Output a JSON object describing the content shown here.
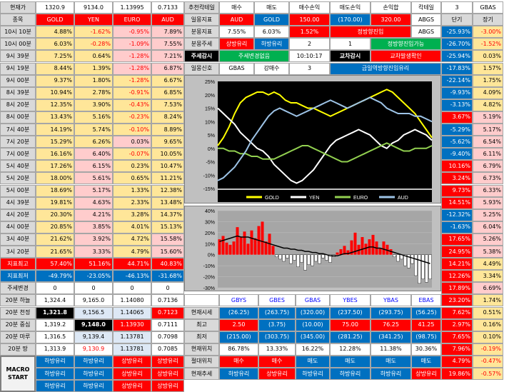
{
  "header": {
    "label": "현재가",
    "name_label": "종목",
    "prices": [
      "1320.9",
      "9134.0",
      "1.13995",
      "0.7133"
    ],
    "symbols": [
      "GOLD",
      "YEN",
      "EURO",
      "AUD"
    ]
  },
  "rows": [
    {
      "label": "10시 10분",
      "v": [
        "4.88%",
        "-1.62%",
        "-0.95%",
        "7.89%"
      ],
      "bg": [
        "gold",
        "gold",
        "pink",
        "pink"
      ]
    },
    {
      "label": "10시 00분",
      "v": [
        "6.03%",
        "-0.28%",
        "-1.09%",
        "7.55%"
      ],
      "bg": [
        "gold",
        "gold",
        "pink",
        "pink"
      ]
    },
    {
      "label": "9시 39분",
      "v": [
        "7.25%",
        "0.64%",
        "-1.28%",
        "7.21%"
      ],
      "bg": [
        "gold",
        "gold",
        "pink",
        "pink"
      ]
    },
    {
      "label": "9시 19분",
      "v": [
        "8.44%",
        "1.39%",
        "-1.28%",
        "6.87%"
      ],
      "bg": [
        "gold",
        "gold",
        "pink",
        "pink"
      ]
    },
    {
      "label": "9시 00분",
      "v": [
        "9.37%",
        "1.80%",
        "-1.28%",
        "6.67%"
      ],
      "bg": [
        "gold",
        "gold",
        "gold",
        "gold"
      ]
    },
    {
      "label": "8시 39분",
      "v": [
        "10.94%",
        "2.78%",
        "-0.91%",
        "6.85%"
      ],
      "bg": [
        "gold",
        "gold",
        "gold",
        "gold"
      ]
    },
    {
      "label": "8시 20분",
      "v": [
        "12.35%",
        "3.90%",
        "-0.43%",
        "7.53%"
      ],
      "bg": [
        "gold",
        "gold",
        "gold",
        "gold"
      ]
    },
    {
      "label": "8시 00분",
      "v": [
        "13.43%",
        "5.16%",
        "-0.23%",
        "8.24%"
      ],
      "bg": [
        "gold",
        "gold",
        "gold",
        "gold"
      ]
    },
    {
      "label": "7시 40분",
      "v": [
        "14.19%",
        "5.74%",
        "-0.10%",
        "8.89%"
      ],
      "bg": [
        "gold",
        "gold",
        "gold",
        "gold"
      ]
    },
    {
      "label": "7시 20분",
      "v": [
        "15.29%",
        "6.26%",
        "0.03%",
        "9.65%"
      ],
      "bg": [
        "gold",
        "gold",
        "pink",
        "gold"
      ]
    },
    {
      "label": "7시 00분",
      "v": [
        "16.16%",
        "6.40%",
        "-0.07%",
        "10.05%"
      ],
      "bg": [
        "gold",
        "pink",
        "gold",
        "gold"
      ]
    },
    {
      "label": "5시 40분",
      "v": [
        "17.26%",
        "6.15%",
        "0.23%",
        "10.47%"
      ],
      "bg": [
        "gold",
        "pink",
        "gold",
        "gold"
      ]
    },
    {
      "label": "5시 20분",
      "v": [
        "18.00%",
        "5.61%",
        "0.65%",
        "11.21%"
      ],
      "bg": [
        "gold",
        "pink",
        "gold",
        "gold"
      ]
    },
    {
      "label": "5시 00분",
      "v": [
        "18.69%",
        "5.17%",
        "1.33%",
        "12.38%"
      ],
      "bg": [
        "gold",
        "pink",
        "gold",
        "gold"
      ]
    },
    {
      "label": "4시 39분",
      "v": [
        "19.81%",
        "4.63%",
        "2.33%",
        "13.48%"
      ],
      "bg": [
        "gold",
        "pink",
        "gold",
        "gold"
      ]
    },
    {
      "label": "4시 20분",
      "v": [
        "20.30%",
        "4.21%",
        "3.28%",
        "14.37%"
      ],
      "bg": [
        "gold",
        "pink",
        "gold",
        "gold"
      ]
    },
    {
      "label": "4시 00분",
      "v": [
        "20.85%",
        "3.85%",
        "4.01%",
        "15.13%"
      ],
      "bg": [
        "gold",
        "pink",
        "gold",
        "gold"
      ]
    },
    {
      "label": "3시 40분",
      "v": [
        "21.62%",
        "3.92%",
        "4.72%",
        "15.58%"
      ],
      "bg": [
        "gold",
        "pink",
        "gold",
        "pink"
      ]
    },
    {
      "label": "3시 20분",
      "v": [
        "21.65%",
        "3.33%",
        "4.79%",
        "15.60%"
      ],
      "bg": [
        "gold",
        "pink",
        "gold",
        "pink"
      ]
    }
  ],
  "max_row": {
    "label": "지표최고",
    "v": [
      "57.40%",
      "51.16%",
      "44.71%",
      "40.83%"
    ]
  },
  "min_row": {
    "label": "지표최저",
    "v": [
      "-49.79%",
      "-23.05%",
      "-46.13%",
      "-31.68%"
    ]
  },
  "trend_change": {
    "label": "주세변경",
    "v": [
      "0",
      "0",
      "0",
      "0"
    ]
  },
  "bands": [
    {
      "label": "20분 하늘",
      "v": [
        "1,324.4",
        "9,165.0",
        "1.14080",
        "0.7136"
      ],
      "style": "wht"
    },
    {
      "label": "20분 천정",
      "v": [
        "1,321.8",
        "9,156.5",
        "1.14065",
        "0.7123"
      ],
      "style": "tops"
    },
    {
      "label": "20분 중심",
      "v": [
        "1,319.2",
        "9,148.0",
        "1.13930",
        "0.7111"
      ],
      "style": "mids"
    },
    {
      "label": "20분 마루",
      "v": [
        "1,316.5",
        "9,139.4",
        "1.13781",
        "0.7098"
      ],
      "style": "lows"
    },
    {
      "label": "20분 땅",
      "v": [
        "1,313.9",
        "9,130.9",
        "1.13781",
        "0.7085"
      ],
      "style": "gnds"
    }
  ],
  "macro": {
    "label": "MACRO\nSTART",
    "l1": "MACRO",
    "l2": "START"
  },
  "bottom_left": [
    [
      "하방유리",
      "하방유리",
      "상방유리",
      "상방유리"
    ],
    [
      "하방유리",
      "하방유리",
      "상방유리",
      "상방유리"
    ],
    [
      "하방유리",
      "하방유리",
      "상방유리",
      "상방유리"
    ]
  ],
  "top_panel": {
    "r1": {
      "a": "추천칵테일",
      "b": "매수",
      "c": "매도",
      "d": "매수손익",
      "e": "매도손익",
      "f": "손익합",
      "g": "칵테일",
      "h": "3",
      "i": "GBAS"
    },
    "r2": {
      "a": "일몽지표",
      "b": "AUD",
      "c": "GOLD",
      "d": "150.00",
      "e": "(170.00)",
      "f": "320.00",
      "g": "ABGS",
      "h": "단기",
      "i": "장기"
    },
    "r3": {
      "a": "분몽지표",
      "b": "7.55%",
      "c": "6.03%",
      "d": "1.52%",
      "e": "정방향진입",
      "g": "ABGS",
      "h": "-25.93%",
      "i": "-3.00%"
    },
    "r4": {
      "a": "분몽주세",
      "b": "상방유리",
      "c": "하방유리",
      "d": "2",
      "e": "1",
      "f": "정방향진입가능",
      "h": "-26.70%",
      "i": "-1.52%"
    },
    "r5": {
      "a": "주세감시",
      "b": "주세변경없음",
      "d": "10:10:17",
      "e": "교차감시",
      "f": "교차발생확인",
      "h": "-25.94%",
      "i": "0.03%"
    },
    "r6": {
      "a": "일몽신호",
      "b": "GBAS",
      "c": "강매수",
      "d": "3",
      "e": "금일역방향진입유리",
      "h": "-17.83%",
      "i": "1.57%"
    }
  },
  "right_short": [
    "-22.14%",
    "-9.93%",
    "-3.13%",
    "3.67%",
    "-5.29%",
    "-5.62%",
    "-9.40%",
    "10.16%",
    "3.24%",
    "9.73%",
    "14.51%",
    "-12.32%",
    "-1.63%",
    "17.65%",
    "24.95%",
    "14.21%",
    "12.26%",
    "17.89%",
    "23.20%",
    "7.62%",
    "2.97%",
    "7.65%",
    "7.96%",
    "4.79%",
    "19.86%"
  ],
  "right_long": [
    "1.75%",
    "4.09%",
    "4.82%",
    "5.19%",
    "5.17%",
    "6.54%",
    "6.11%",
    "6.79%",
    "6.73%",
    "6.33%",
    "5.93%",
    "5.25%",
    "6.04%",
    "5.26%",
    "5.38%",
    "4.49%",
    "3.34%",
    "6.69%",
    "1.74%",
    "0.51%",
    "0.16%",
    "0.10%",
    "-0.19%",
    "-0.47%",
    "-0.57%"
  ],
  "summary": {
    "headers": [
      "GBYS",
      "GBES",
      "GBAS",
      "YBES",
      "YBAS",
      "EBAS"
    ],
    "rows": [
      {
        "label": "현재시세",
        "v": [
          "(26.25)",
          "(263.75)",
          "(320.00)",
          "(237.50)",
          "(293.75)",
          "(56.25)"
        ]
      },
      {
        "label": "최고",
        "v": [
          "2.50",
          "(3.75)",
          "(10.00)",
          "75.00",
          "76.25",
          "41.25"
        ]
      },
      {
        "label": "최저",
        "v": [
          "(215.00)",
          "(303.75)",
          "(345.00)",
          "(281.25)",
          "(341.25)",
          "(98.75)"
        ]
      },
      {
        "label": "현재위치",
        "v": [
          "86.78%",
          "13.33%",
          "16.22%",
          "12.28%",
          "11.38%",
          "30.36%"
        ]
      },
      {
        "label": "절대위치",
        "v": [
          "매수",
          "매수",
          "매도",
          "매도",
          "매도",
          "매도"
        ]
      },
      {
        "label": "현재추세",
        "v": [
          "하방유리",
          "상방유리",
          "하방유리",
          "하방유리",
          "하방유리",
          "상방유리"
        ]
      }
    ]
  },
  "chart_data": [
    {
      "type": "line",
      "title": "",
      "ylim": [
        -15,
        25
      ],
      "yticks": [
        "25%",
        "20%",
        "15%",
        "10%",
        "5%",
        "0%",
        "-5%",
        "-10%",
        "-15%"
      ],
      "series": [
        {
          "name": "GOLD",
          "color": "#ffff00",
          "values": [
            1,
            4,
            8,
            13,
            17,
            19,
            20,
            21,
            21,
            20,
            21,
            20,
            18,
            17,
            17,
            16,
            15,
            15,
            14,
            13,
            12,
            13,
            14,
            15,
            16,
            17,
            18,
            19,
            20,
            21,
            22,
            21,
            19,
            17,
            15,
            13,
            10,
            7,
            4
          ]
        },
        {
          "name": "YEN",
          "color": "#ffffff",
          "values": [
            15,
            13,
            11,
            9,
            6,
            4,
            2,
            0,
            -1,
            -3,
            -6,
            -8,
            -10,
            -12,
            -13,
            -12,
            -10,
            -8,
            -5,
            -2,
            1,
            3,
            4,
            5,
            6,
            7,
            6,
            5,
            3,
            1,
            0,
            2,
            3,
            5,
            6,
            7,
            6,
            5,
            3
          ]
        },
        {
          "name": "EURO",
          "color": "#92d050",
          "values": [
            0,
            0,
            -1,
            -1,
            -2,
            -2,
            -3,
            -3,
            -4,
            -4,
            -4,
            -3,
            -2,
            -1,
            0,
            1,
            1,
            0,
            -1,
            -2,
            -3,
            -4,
            -5,
            -5,
            -4,
            -3,
            -2,
            -1,
            0,
            1,
            2,
            1,
            0,
            -1,
            -1,
            0,
            0,
            0,
            1
          ]
        },
        {
          "name": "AUD",
          "color": "#9dc3e6",
          "values": [
            -12,
            -11,
            -9,
            -7,
            -4,
            -1,
            3,
            6,
            9,
            12,
            14,
            15,
            14,
            13,
            12,
            13,
            14,
            15,
            16,
            17,
            18,
            17,
            16,
            15,
            16,
            17,
            18,
            19,
            18,
            17,
            15,
            14,
            13,
            13,
            13,
            12,
            12,
            11,
            10
          ]
        }
      ]
    },
    {
      "type": "bar",
      "title": "",
      "ylim": [
        -30,
        40
      ],
      "yticks": [
        "40%",
        "30%",
        "20%",
        "10%",
        "0%",
        "-10%",
        "-20%",
        "-30%"
      ],
      "values": [
        14,
        17,
        11,
        9,
        12,
        25,
        16,
        21,
        10,
        22,
        15,
        26,
        30,
        12,
        19,
        8,
        -2,
        -4,
        -6,
        -3,
        -8,
        -5,
        -11,
        -7,
        -14,
        -9,
        -10,
        -6,
        -8,
        -3,
        -5,
        -7,
        -2,
        2,
        5,
        8,
        4,
        13,
        20,
        9,
        16,
        10,
        14,
        18,
        12,
        6,
        12,
        9,
        5,
        -2,
        -6,
        -4,
        -10,
        -12,
        -8,
        -19,
        -26,
        -22,
        -25,
        -22
      ],
      "line": [
        12,
        13,
        14,
        15,
        16,
        17,
        16,
        16,
        16,
        15,
        14,
        13,
        12,
        11,
        10,
        9,
        8,
        7,
        6,
        6,
        5,
        5,
        4,
        4,
        3,
        3,
        2,
        2,
        1,
        1,
        0,
        -1,
        -1,
        -1,
        0,
        1,
        1,
        2,
        3,
        4,
        5,
        6,
        7,
        7,
        6,
        6,
        5,
        4,
        3,
        2,
        1,
        0,
        -1,
        -2,
        -3,
        -4,
        -5,
        -6,
        -7,
        -8
      ]
    }
  ]
}
